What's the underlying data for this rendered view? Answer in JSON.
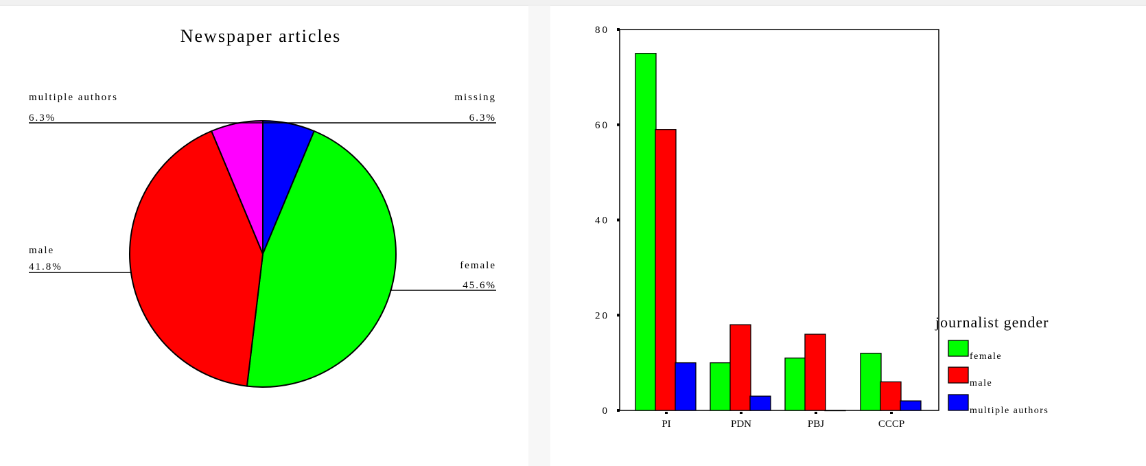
{
  "chart_data": [
    {
      "type": "pie",
      "title": "Newspaper articles",
      "slices": [
        {
          "label": "missing",
          "percent_label": "6.3%",
          "value": 6.3,
          "color": "#0000FF"
        },
        {
          "label": "female",
          "percent_label": "45.6%",
          "value": 45.6,
          "color": "#00FF00"
        },
        {
          "label": "male",
          "percent_label": "41.8%",
          "value": 41.8,
          "color": "#FF0000"
        },
        {
          "label": "multiple authors",
          "percent_label": "6.3%",
          "value": 6.3,
          "color": "#FF00FF"
        }
      ]
    },
    {
      "type": "bar",
      "categories": [
        "PI",
        "PDN",
        "PBJ",
        "CCCP"
      ],
      "series": [
        {
          "name": "female",
          "values": [
            75,
            10,
            11,
            12
          ],
          "color": "#00FF00"
        },
        {
          "name": "male",
          "values": [
            59,
            18,
            16,
            6
          ],
          "color": "#FF0000"
        },
        {
          "name": "multiple authors",
          "values": [
            10,
            3,
            0,
            2
          ],
          "color": "#0000FF"
        }
      ],
      "ylim": [
        0,
        80
      ],
      "yticks": [
        0,
        20,
        40,
        60,
        80
      ],
      "legend_title": "journalist gender",
      "legend_position": "right-bottom",
      "grid": false
    }
  ]
}
